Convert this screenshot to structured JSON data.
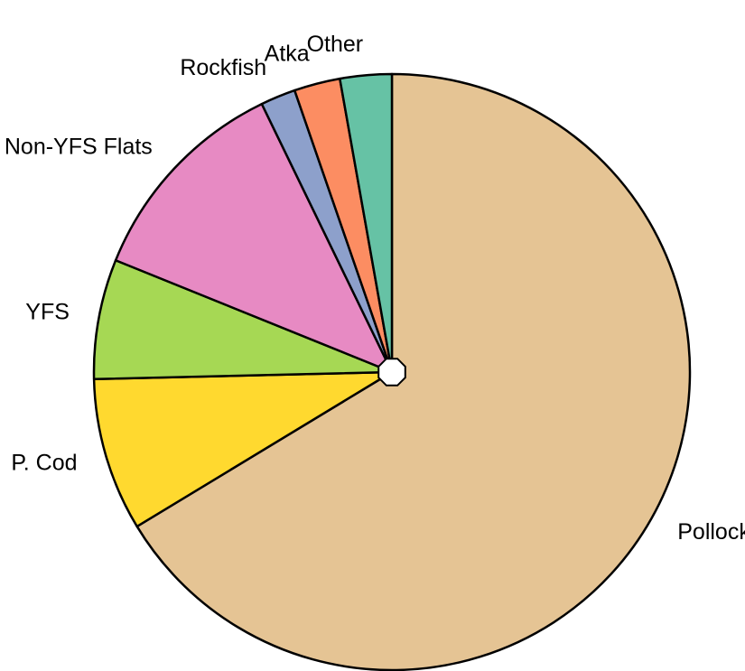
{
  "chart_data": {
    "type": "pie",
    "categories": [
      "Pollock",
      "P. Cod",
      "YFS",
      "Non-YFS Flats",
      "Rockfish",
      "Atka",
      "Other"
    ],
    "values": [
      66.4,
      8.3,
      6.5,
      11.7,
      1.9,
      2.5,
      2.8
    ],
    "colors": [
      "#e5c494",
      "#ffd92f",
      "#a6d854",
      "#e78ac3",
      "#8da0cb",
      "#fc8d62",
      "#66c2a5"
    ]
  }
}
